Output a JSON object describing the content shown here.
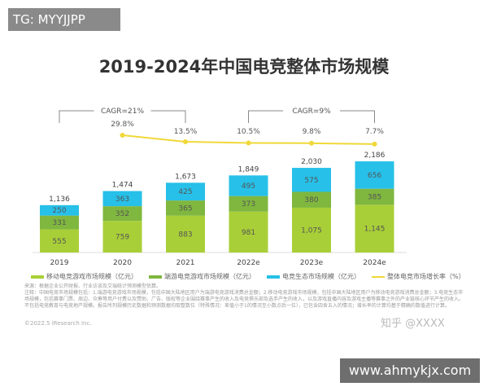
{
  "overlay": {
    "tg": "TG: MYYJJPP",
    "site": "www.ahmykjx.com",
    "zhihu": "知乎 @XXXX"
  },
  "chart_data": {
    "type": "bar",
    "title": "2019-2024年中国电竞整体市场规模",
    "categories": [
      "2019",
      "2020",
      "2021",
      "2022e",
      "2023e",
      "2024e"
    ],
    "series": [
      {
        "name": "移动电竞游戏市场规模（亿元）",
        "values": [
          555,
          759,
          883,
          981,
          1075,
          1145
        ],
        "color": "#a9cf38"
      },
      {
        "name": "端游电竞游戏市场规模（亿元）",
        "values": [
          331,
          352,
          365,
          373,
          380,
          385
        ],
        "color": "#7fb73f"
      },
      {
        "name": "电竞生态市场规模（亿元）",
        "values": [
          250,
          363,
          425,
          495,
          575,
          656
        ],
        "color": "#27c0e8"
      }
    ],
    "totals": [
      "1,136",
      "1,474",
      "1,673",
      "1,849",
      "2,030",
      "2,186"
    ],
    "value_labels": [
      [
        "555",
        "331",
        "250"
      ],
      [
        "759",
        "352",
        "363"
      ],
      [
        "883",
        "365",
        "425"
      ],
      [
        "981",
        "373",
        "495"
      ],
      [
        "1,075",
        "380",
        "575"
      ],
      [
        "1,145",
        "385",
        "656"
      ]
    ],
    "line": {
      "name": "整体电竞市场增长率（%）",
      "values": [
        null,
        29.8,
        13.5,
        10.5,
        9.8,
        7.7
      ],
      "labels": [
        "",
        "29.8%",
        "13.5%",
        "10.5%",
        "9.8%",
        "7.7%"
      ],
      "color": "#f0d83a"
    },
    "annotations": [
      {
        "text": "CAGR=21%",
        "from": "2019",
        "to": "2021"
      },
      {
        "text": "CAGR=9%",
        "from": "2022e",
        "to": "2024e"
      }
    ],
    "legend_placement": "bottom"
  },
  "footer": {
    "source": "来源：根据企业公开财报、行业访谈及艾瑞统计预测模型估算。",
    "note": "注释：中国电竞市场规模包括：1.端游电竞游戏市场规模，包括中国大陆地区用户为端游电竞游戏消费总金额；2.移动电竞游戏市场规模，包括中国大陆地区用户为移动电竞游戏消费总金额；3.电竞生态市场规模，包括赛事门票、周边、众筹等用户付费以及赞助、广告、版权等企业围绕赛事产生的收入及电竞俱乐部及选手产生的收入，以及游戏直播内容及游戏主播等赛事之外的产业链核心环节产生的收入。不包括电竞教育与电竞地产规模。报告所列规模历史数据和预测数据均取整数位（特殊情况：差值小于1的情况至小数点后一位），已包含四舍五入的情况；增长率的计算均基于精确的数值进行计算。",
    "copyright": "©2022.5 iResearch Inc."
  }
}
